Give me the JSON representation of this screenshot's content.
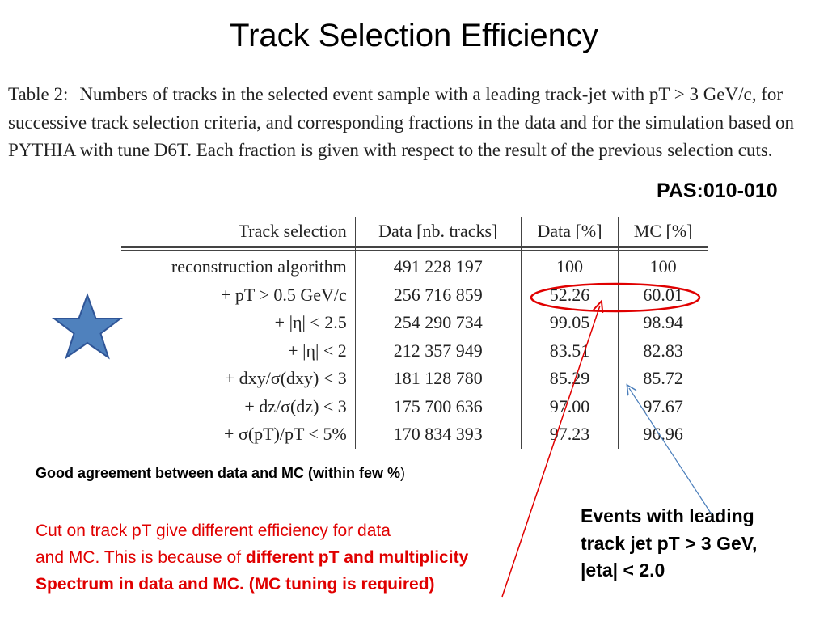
{
  "slide": {
    "title": "Track Selection Efficiency",
    "caption": {
      "label": "Table 2:",
      "text": "Numbers of tracks in the selected event sample with a leading track-jet with pT > 3 GeV/c, for successive track selection criteria, and corresponding fractions in the data and for the simulation based on PYTHIA with tune D6T. Each fraction is given with respect to the result of the previous selection cuts."
    },
    "reference": "PAS:010-010",
    "table": {
      "headers": [
        "Track selection",
        "Data [nb. tracks]",
        "Data [%]",
        "MC [%]"
      ],
      "rows": [
        [
          "reconstruction algorithm",
          "491 228 197",
          "100",
          "100"
        ],
        [
          "+ pT > 0.5 GeV/c",
          "256 716 859",
          "52.26",
          "60.01"
        ],
        [
          "+ |η| < 2.5",
          "254 290 734",
          "99.05",
          "98.94"
        ],
        [
          "+ |η| < 2",
          "212 357 949",
          "83.51",
          "82.83"
        ],
        [
          "+ dxy/σ(dxy) < 3",
          "181 128 780",
          "85.29",
          "85.72"
        ],
        [
          "+ dz/σ(dz) < 3",
          "175 700 636",
          "97.00",
          "97.67"
        ],
        [
          "+ σ(pT)/pT < 5%",
          "170 834 393",
          "97.23",
          "96.96"
        ]
      ]
    },
    "notes": {
      "agreement_main": "Good agreement between data and MC (within few %",
      "agreement_tail": ")",
      "cut_line1": "Cut on track pT give different efficiency for data",
      "cut_line2_plain": "and MC. This is because of ",
      "cut_line2_bold": "different pT and multiplicity",
      "cut_line3_bold": "Spectrum in data and MC. (MC tuning is required)",
      "events_line1": "Events with leading",
      "events_line2": "track jet pT > 3 GeV,",
      "events_line3": "|eta| < 2.0"
    },
    "colors": {
      "star_fill": "#4f81bd",
      "star_stroke": "#2f5597",
      "highlight_ellipse": "#e00000",
      "red_arrow": "#e00000",
      "blue_arrow": "#4a7ebb",
      "note_red": "#e00000"
    },
    "icons": [
      "star-icon"
    ]
  }
}
